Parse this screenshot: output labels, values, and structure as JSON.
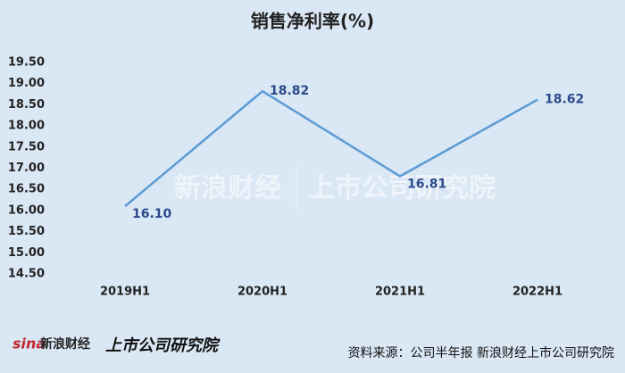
{
  "chart_data": {
    "type": "line",
    "title": "销售净利率(%)",
    "categories": [
      "2019H1",
      "2020H1",
      "2021H1",
      "2022H1"
    ],
    "values": [
      16.1,
      18.82,
      16.81,
      18.62
    ],
    "value_labels": [
      "16.10",
      "18.82",
      "16.81",
      "18.62"
    ],
    "color": "#5b9bd5",
    "ylim": [
      14.5,
      19.5
    ],
    "yticks": [
      {
        "value": 14.5,
        "label": "14.50"
      },
      {
        "value": 15,
        "label": "15.00"
      },
      {
        "value": 15.5,
        "label": "15.50"
      },
      {
        "value": 16,
        "label": "16.00"
      },
      {
        "value": 16.5,
        "label": "16.50"
      },
      {
        "value": 17,
        "label": "17.00"
      },
      {
        "value": 17.5,
        "label": "17.50"
      },
      {
        "value": 18,
        "label": "18.00"
      },
      {
        "value": 18.5,
        "label": "18.50"
      },
      {
        "value": 19,
        "label": "19.00"
      },
      {
        "value": 19.5,
        "label": "19.50"
      }
    ],
    "grid": false,
    "watermark": [
      "新浪财经",
      "上市公司研究院"
    ],
    "footer_logo": [
      "sina",
      "新浪财经",
      "上市公司研究院"
    ],
    "source": "资料来源：公司半年报 新浪财经上市公司研究院"
  }
}
